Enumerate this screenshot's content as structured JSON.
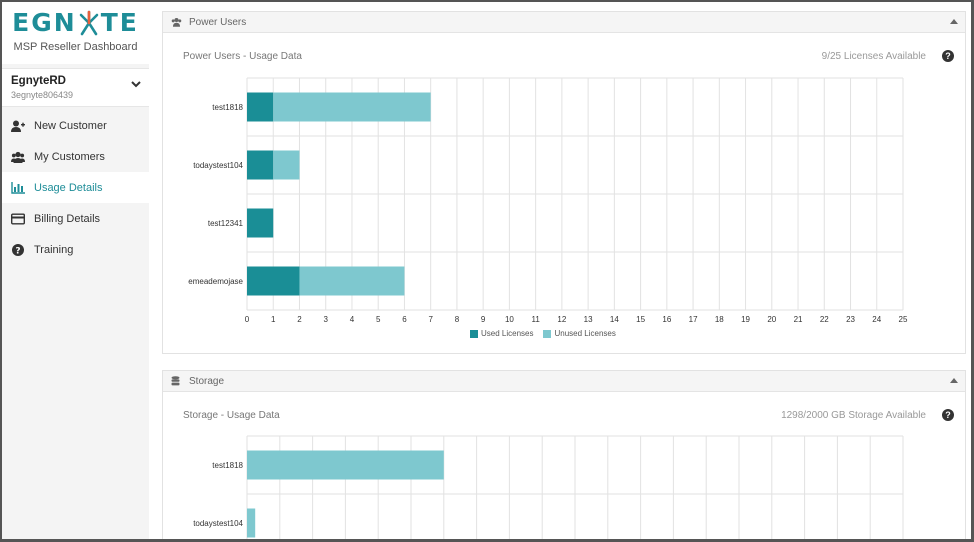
{
  "logo": {
    "text_left": "EGN",
    "text_right": "TE",
    "subtitle": "MSP Reseller Dashboard"
  },
  "account": {
    "name": "EgnyteRD",
    "id": "3egnyte806439"
  },
  "nav": [
    {
      "label": "New Customer",
      "icon": "add-user-icon"
    },
    {
      "label": "My Customers",
      "icon": "users-icon"
    },
    {
      "label": "Usage Details",
      "icon": "bar-chart-icon",
      "active": true
    },
    {
      "label": "Billing Details",
      "icon": "credit-card-icon"
    },
    {
      "label": "Training",
      "icon": "question-circle-icon"
    }
  ],
  "colors": {
    "accent": "#1e8d98",
    "used": "#1a8e96",
    "unused": "#7ec8cf",
    "grid": "#e2e2e2"
  },
  "power_panel": {
    "title": "Power Users",
    "subtitle": "Power Users - Usage Data",
    "available": "9/25 Licenses Available",
    "legend": {
      "used": "Used Licenses",
      "unused": "Unused Licenses"
    }
  },
  "storage_panel": {
    "title": "Storage",
    "subtitle": "Storage - Usage Data",
    "available": "1298/2000 GB Storage Available"
  },
  "chart_data": [
    {
      "type": "bar",
      "orientation": "horizontal",
      "stacked": true,
      "categories": [
        "test1818",
        "todaystest104",
        "test12341",
        "emeademojase"
      ],
      "series": [
        {
          "name": "Used Licenses",
          "values": [
            1,
            1,
            1,
            2
          ]
        },
        {
          "name": "Unused Licenses",
          "values": [
            6,
            1,
            0,
            4
          ]
        }
      ],
      "xlim": [
        0,
        25
      ],
      "xticks": [
        0,
        1,
        2,
        3,
        4,
        5,
        6,
        7,
        8,
        9,
        10,
        11,
        12,
        13,
        14,
        15,
        16,
        17,
        18,
        19,
        20,
        21,
        22,
        23,
        24,
        25
      ],
      "grid": true,
      "legend": "bottom-center"
    },
    {
      "type": "bar",
      "orientation": "horizontal",
      "categories": [
        "test1818",
        "todaystest104"
      ],
      "series": [
        {
          "name": "Storage",
          "values": [
            600,
            25
          ]
        }
      ],
      "xlim": [
        0,
        2000
      ],
      "grid": true
    }
  ]
}
